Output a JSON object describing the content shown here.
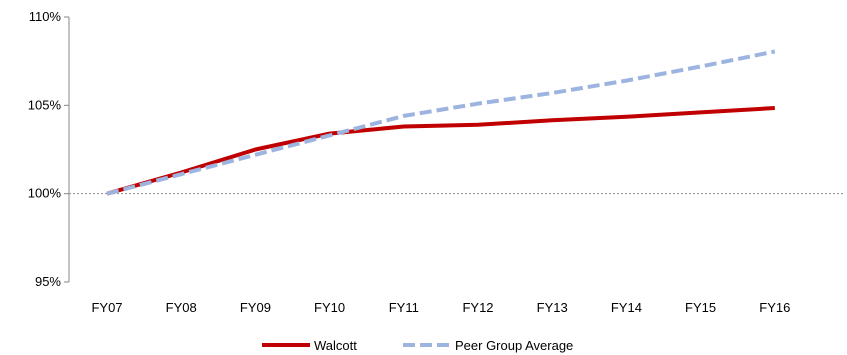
{
  "chart_data": {
    "type": "line",
    "categories": [
      "FY07",
      "FY08",
      "FY09",
      "FY10",
      "FY11",
      "FY12",
      "FY13",
      "FY14",
      "FY15",
      "FY16"
    ],
    "y_tick_labels": [
      "110%",
      "105%",
      "100%",
      "95%"
    ],
    "ylim": [
      95,
      110
    ],
    "y_ticks": [
      110,
      105,
      100,
      95
    ],
    "baseline": 100,
    "grid": false,
    "legend_position": "bottom",
    "series": [
      {
        "name": "Walcott",
        "color": "#C00000",
        "style": "solid",
        "values": [
          100.0,
          101.2,
          102.5,
          103.4,
          103.8,
          103.9,
          104.15,
          104.35,
          104.6,
          104.85
        ]
      },
      {
        "name": "Peer Group Average",
        "color": "#9DB4E0",
        "style": "dashed",
        "values": [
          100.0,
          101.1,
          102.2,
          103.3,
          104.4,
          105.1,
          105.7,
          106.4,
          107.2,
          108.05
        ]
      }
    ]
  }
}
